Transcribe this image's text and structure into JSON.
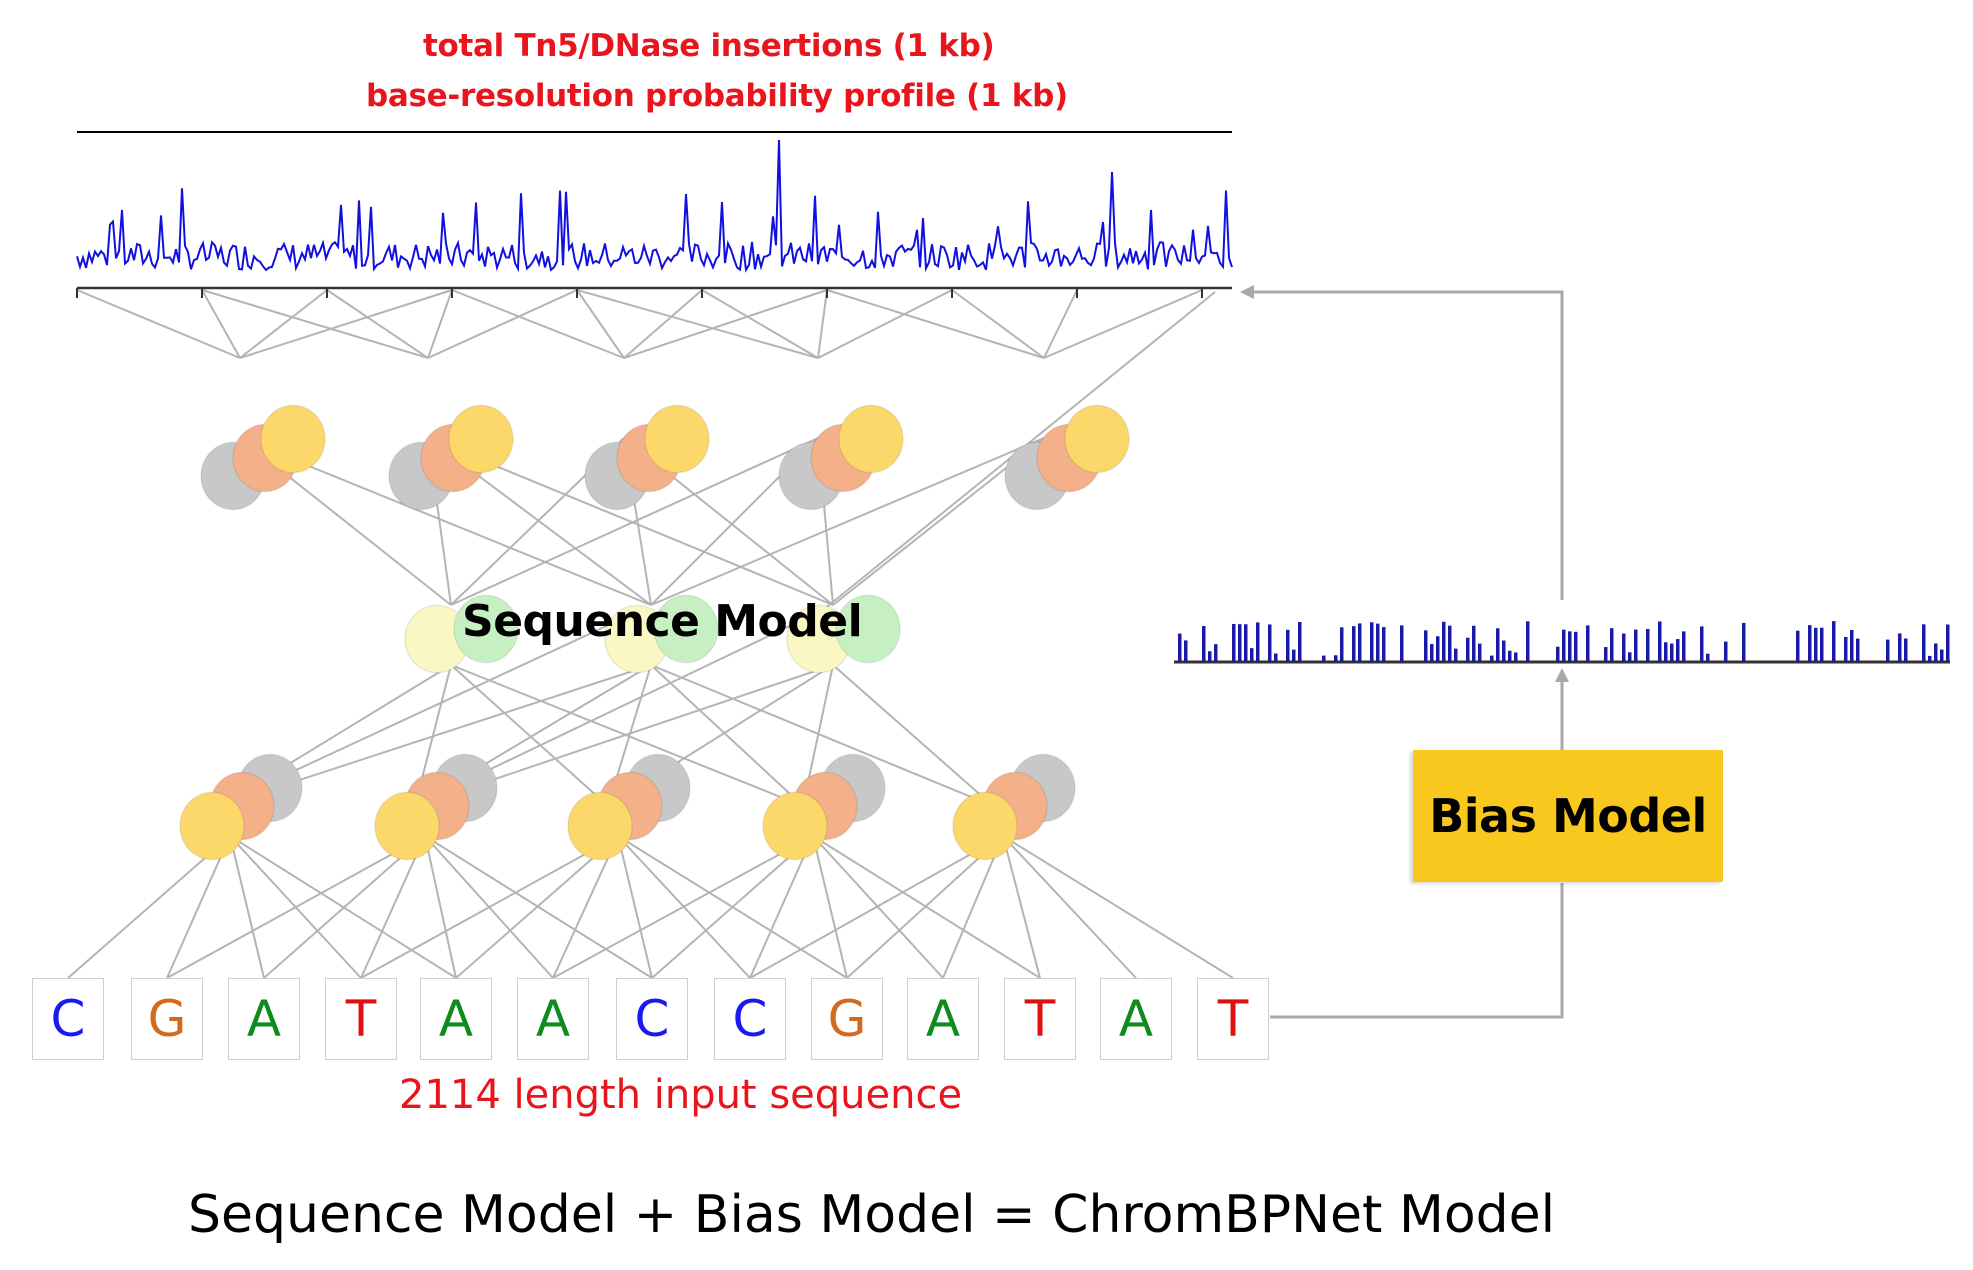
{
  "header": {
    "line1": "total Tn5/DNase insertions (1 kb)",
    "line2": "base-resolution probability profile (1 kb)"
  },
  "sequence_model": {
    "label": "Sequence Model"
  },
  "bias_model": {
    "label": "Bias Model"
  },
  "input": {
    "bases": [
      "C",
      "G",
      "A",
      "T",
      "A",
      "A",
      "C",
      "C",
      "G",
      "A",
      "T",
      "A",
      "T"
    ],
    "caption": "2114 length input sequence"
  },
  "equation": "Sequence Model + Bias Model = ChromBPNet Model",
  "colors": {
    "A": "#0f8a1c",
    "C": "#1a1af0",
    "G": "#d2691e",
    "T": "#e01010",
    "profile": "#1010e0",
    "bias_track": "#1a1aa8",
    "node_gray": "#c8c8c8",
    "node_orange": "#f3b089",
    "node_yellow": "#fcd86a",
    "node_cream": "#fbf7c4",
    "node_green": "#c7f0c2",
    "connection": "#b4b4b4",
    "bias_box": "#f9c81e",
    "title_red": "#e8161c"
  }
}
